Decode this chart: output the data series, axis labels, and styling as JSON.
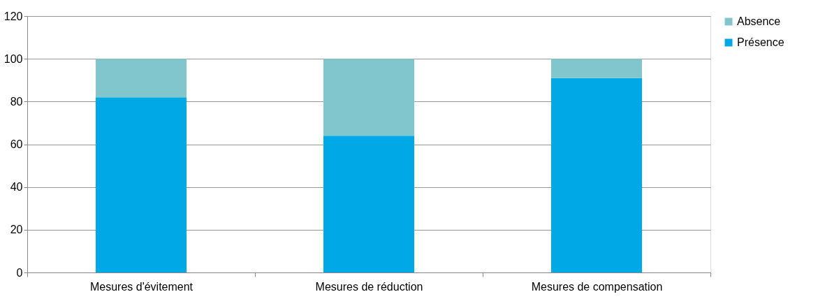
{
  "chart_data": {
    "type": "bar",
    "stacked": true,
    "categories": [
      "Mesures d'évitement",
      "Mesures de réduction",
      "Mesures de compensation"
    ],
    "series": [
      {
        "name": "Présence",
        "color": "#00a9e6",
        "values": [
          82,
          64,
          91
        ]
      },
      {
        "name": "Absence",
        "color": "#80c6cc",
        "values": [
          18,
          36,
          9
        ]
      }
    ],
    "ylim": [
      0,
      120
    ],
    "yticks": [
      0,
      20,
      40,
      60,
      80,
      100,
      120
    ],
    "grid": "y",
    "legend": "right"
  }
}
